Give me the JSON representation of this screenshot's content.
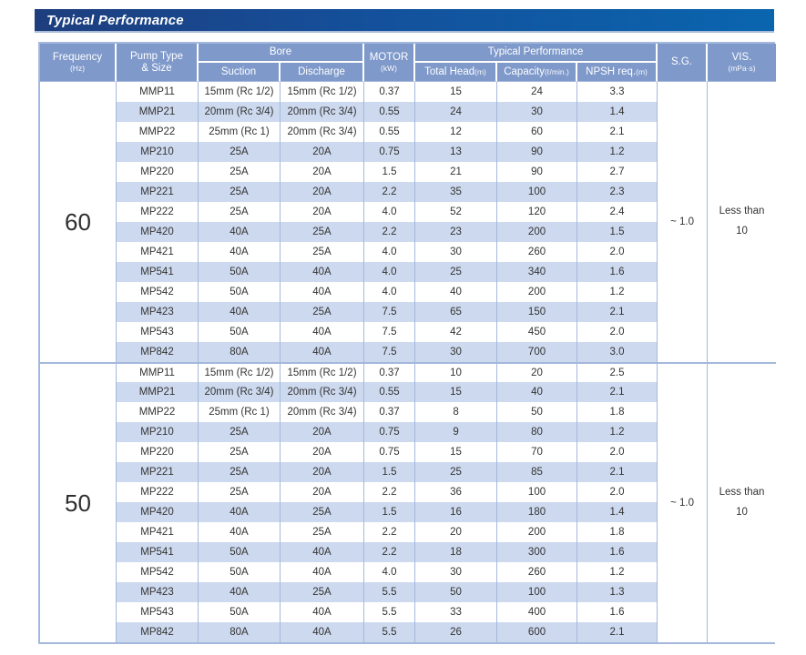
{
  "banner": {
    "title": "Typical Performance",
    "gradient_left": "#1e3e7e",
    "gradient_right": "#0a65af"
  },
  "table": {
    "colors": {
      "header_bg": "#7e99ca",
      "header_text": "#ffffff",
      "stripe": "#cdd9ee",
      "border": "#a4b8dc",
      "text": "#333333"
    },
    "header": {
      "frequency": {
        "label": "Frequency",
        "sub": "(Hz)"
      },
      "pump_type": {
        "line1": "Pump Type",
        "line2": "& Size"
      },
      "bore": {
        "label": "Bore",
        "suction": "Suction",
        "discharge": "Discharge"
      },
      "motor": {
        "label": "MOTOR",
        "sub": "(kW)"
      },
      "performance": {
        "label": "Typical Performance",
        "total_head": "Total Head",
        "total_head_sub": "(m)",
        "capacity": "Capacity",
        "capacity_sub": "(ℓ/min.)",
        "npsh": "NPSH req.",
        "npsh_sub": "(m)"
      },
      "sg": "S.G.",
      "vis": {
        "label": "VIS.",
        "sub": "(mPa·s)"
      }
    },
    "sections": [
      {
        "frequency": "60",
        "sg": "~ 1.0",
        "vis": {
          "line1": "Less than",
          "line2": "10"
        },
        "rows": [
          [
            "MMP11",
            "15mm (Rc 1/2)",
            "15mm (Rc 1/2)",
            "0.37",
            "15",
            "24",
            "3.3"
          ],
          [
            "MMP21",
            "20mm (Rc 3/4)",
            "20mm (Rc 3/4)",
            "0.55",
            "24",
            "30",
            "1.4"
          ],
          [
            "MMP22",
            "25mm (Rc 1)",
            "20mm (Rc 3/4)",
            "0.55",
            "12",
            "60",
            "2.1"
          ],
          [
            "MP210",
            "25A",
            "20A",
            "0.75",
            "13",
            "90",
            "1.2"
          ],
          [
            "MP220",
            "25A",
            "20A",
            "1.5",
            "21",
            "90",
            "2.7"
          ],
          [
            "MP221",
            "25A",
            "20A",
            "2.2",
            "35",
            "100",
            "2.3"
          ],
          [
            "MP222",
            "25A",
            "20A",
            "4.0",
            "52",
            "120",
            "2.4"
          ],
          [
            "MP420",
            "40A",
            "25A",
            "2.2",
            "23",
            "200",
            "1.5"
          ],
          [
            "MP421",
            "40A",
            "25A",
            "4.0",
            "30",
            "260",
            "2.0"
          ],
          [
            "MP541",
            "50A",
            "40A",
            "4.0",
            "25",
            "340",
            "1.6"
          ],
          [
            "MP542",
            "50A",
            "40A",
            "4.0",
            "40",
            "200",
            "1.2"
          ],
          [
            "MP423",
            "40A",
            "25A",
            "7.5",
            "65",
            "150",
            "2.1"
          ],
          [
            "MP543",
            "50A",
            "40A",
            "7.5",
            "42",
            "450",
            "2.0"
          ],
          [
            "MP842",
            "80A",
            "40A",
            "7.5",
            "30",
            "700",
            "3.0"
          ]
        ]
      },
      {
        "frequency": "50",
        "sg": "~ 1.0",
        "vis": {
          "line1": "Less than",
          "line2": "10"
        },
        "rows": [
          [
            "MMP11",
            "15mm (Rc 1/2)",
            "15mm (Rc 1/2)",
            "0.37",
            "10",
            "20",
            "2.5"
          ],
          [
            "MMP21",
            "20mm (Rc 3/4)",
            "20mm (Rc 3/4)",
            "0.55",
            "15",
            "40",
            "2.1"
          ],
          [
            "MMP22",
            "25mm (Rc 1)",
            "20mm (Rc 3/4)",
            "0.37",
            "8",
            "50",
            "1.8"
          ],
          [
            "MP210",
            "25A",
            "20A",
            "0.75",
            "9",
            "80",
            "1.2"
          ],
          [
            "MP220",
            "25A",
            "20A",
            "0.75",
            "15",
            "70",
            "2.0"
          ],
          [
            "MP221",
            "25A",
            "20A",
            "1.5",
            "25",
            "85",
            "2.1"
          ],
          [
            "MP222",
            "25A",
            "20A",
            "2.2",
            "36",
            "100",
            "2.0"
          ],
          [
            "MP420",
            "40A",
            "25A",
            "1.5",
            "16",
            "180",
            "1.4"
          ],
          [
            "MP421",
            "40A",
            "25A",
            "2.2",
            "20",
            "200",
            "1.8"
          ],
          [
            "MP541",
            "50A",
            "40A",
            "2.2",
            "18",
            "300",
            "1.6"
          ],
          [
            "MP542",
            "50A",
            "40A",
            "4.0",
            "30",
            "260",
            "1.2"
          ],
          [
            "MP423",
            "40A",
            "25A",
            "5.5",
            "50",
            "100",
            "1.3"
          ],
          [
            "MP543",
            "50A",
            "40A",
            "5.5",
            "33",
            "400",
            "1.6"
          ],
          [
            "MP842",
            "80A",
            "40A",
            "5.5",
            "26",
            "600",
            "2.1"
          ]
        ]
      }
    ]
  }
}
